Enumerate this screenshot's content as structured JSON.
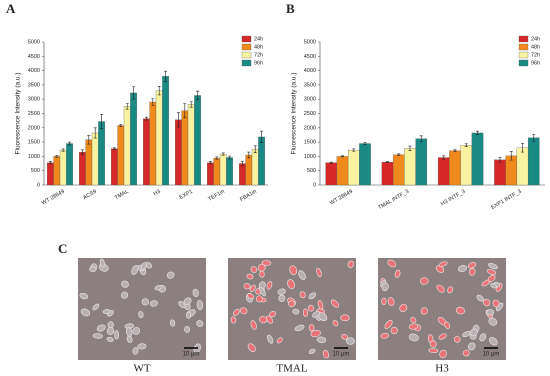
{
  "chart_data": [
    {
      "type": "bar",
      "label": "A",
      "ylabel": "Fluorescence Intensity (a.u.)",
      "categories": [
        "WT 28849",
        "ACS9",
        "TMAL",
        "H3",
        "EXP1",
        "TEF1in",
        "FBA1in"
      ],
      "ylim": [
        0,
        5000
      ],
      "yticks": [
        0,
        500,
        1000,
        1500,
        2000,
        2500,
        3000,
        3500,
        4000,
        4500,
        5000
      ],
      "legend": "upper right",
      "series": [
        {
          "name": "24h",
          "color": "#d62828",
          "values": [
            780,
            1150,
            1270,
            2320,
            2280,
            780,
            750
          ],
          "errors": [
            40,
            80,
            30,
            50,
            250,
            40,
            80
          ]
        },
        {
          "name": "48h",
          "color": "#f08a1c",
          "values": [
            1000,
            1580,
            2080,
            2900,
            2600,
            940,
            1050
          ],
          "errors": [
            30,
            150,
            40,
            120,
            250,
            40,
            100
          ]
        },
        {
          "name": "72h",
          "color": "#f7f3a0",
          "values": [
            1220,
            1820,
            2750,
            3300,
            2820,
            1080,
            1250
          ],
          "errors": [
            40,
            180,
            100,
            150,
            100,
            40,
            120
          ]
        },
        {
          "name": "96h",
          "color": "#1a8a84",
          "values": [
            1450,
            2220,
            3220,
            3800,
            3130,
            960,
            1680
          ],
          "errors": [
            50,
            250,
            220,
            180,
            150,
            50,
            200
          ]
        }
      ]
    },
    {
      "type": "bar",
      "label": "B",
      "ylabel": "Fluorescence Intensity (a.u.)",
      "categories": [
        "WT 28849",
        "TMAL INTF_3",
        "H3 INTF_3",
        "EXP1 INTF_3"
      ],
      "ylim": [
        0,
        5000
      ],
      "yticks": [
        0,
        500,
        1000,
        1500,
        2000,
        2500,
        3000,
        3500,
        4000,
        4500,
        5000
      ],
      "legend": "upper right",
      "series": [
        {
          "name": "24h",
          "color": "#d62828",
          "values": [
            780,
            800,
            960,
            880
          ],
          "errors": [
            20,
            20,
            60,
            80
          ]
        },
        {
          "name": "48h",
          "color": "#f08a1c",
          "values": [
            1000,
            1060,
            1200,
            1020
          ],
          "errors": [
            20,
            30,
            30,
            150
          ]
        },
        {
          "name": "72h",
          "color": "#f7f3a0",
          "values": [
            1220,
            1280,
            1390,
            1300
          ],
          "errors": [
            40,
            80,
            50,
            150
          ]
        },
        {
          "name": "96h",
          "color": "#1a8a84",
          "values": [
            1450,
            1620,
            1820,
            1650
          ],
          "errors": [
            40,
            100,
            60,
            120
          ]
        }
      ]
    }
  ],
  "micrographs": {
    "label": "C",
    "images": [
      {
        "caption": "WT",
        "scale": "10 μm"
      },
      {
        "caption": "TMAL",
        "scale": "10 μm"
      },
      {
        "caption": "H3",
        "scale": "10 μm"
      }
    ]
  }
}
